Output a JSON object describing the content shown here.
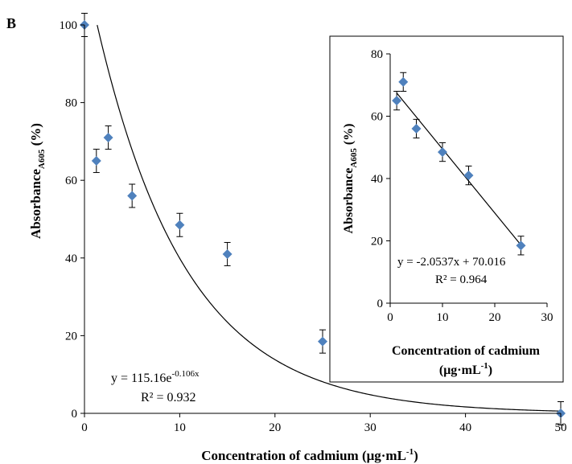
{
  "panel_label": "B",
  "chart_data": [
    {
      "type": "scatter",
      "xlabel": "Concentration of cadmium (μg·mL",
      "xlabel_sup": "-1",
      "xlabel_end": ")",
      "ylabel": "Absorbance",
      "ylabel_sub": "A605",
      "ylabel_end": " (%)",
      "xlim": [
        0,
        50
      ],
      "ylim": [
        0,
        100
      ],
      "xticks": [
        0,
        10,
        20,
        30,
        40,
        50
      ],
      "yticks": [
        0,
        20,
        40,
        60,
        80,
        100
      ],
      "marker_color": "#4f81bd",
      "points": [
        {
          "x": 0,
          "y": 100,
          "err": 3
        },
        {
          "x": 1.25,
          "y": 65,
          "err": 3
        },
        {
          "x": 2.5,
          "y": 71,
          "err": 3
        },
        {
          "x": 5,
          "y": 56,
          "err": 3
        },
        {
          "x": 10,
          "y": 48.5,
          "err": 3
        },
        {
          "x": 15,
          "y": 41,
          "err": 3
        },
        {
          "x": 25,
          "y": 18.5,
          "err": 3
        },
        {
          "x": 50,
          "y": 0,
          "err": 3
        }
      ],
      "fit": {
        "type": "exponential",
        "a": 115.16,
        "b": -0.106
      },
      "equation": "y = 115.16e",
      "equation_exp": "-0.106x",
      "r2": "R² = 0.932"
    },
    {
      "type": "scatter",
      "xlabel": "Concentration of cadmium",
      "xlabel2": "(μg·mL",
      "xlabel2_sup": "-1",
      "xlabel2_end": ")",
      "ylabel": "Absorbance",
      "ylabel_sub": "A605",
      "ylabel_end": " (%)",
      "xlim": [
        0,
        30
      ],
      "ylim": [
        0,
        80
      ],
      "xticks": [
        0,
        10,
        20,
        30
      ],
      "yticks": [
        0,
        20,
        40,
        60,
        80
      ],
      "marker_color": "#4f81bd",
      "points": [
        {
          "x": 1.25,
          "y": 65,
          "err": 3
        },
        {
          "x": 2.5,
          "y": 71,
          "err": 3
        },
        {
          "x": 5,
          "y": 56,
          "err": 3
        },
        {
          "x": 10,
          "y": 48.5,
          "err": 3
        },
        {
          "x": 15,
          "y": 41,
          "err": 3
        },
        {
          "x": 25,
          "y": 18.5,
          "err": 3
        }
      ],
      "fit": {
        "type": "linear",
        "slope": -2.0537,
        "intercept": 70.016
      },
      "equation": "y = -2.0537x + 70.016",
      "r2": "R² = 0.964"
    }
  ]
}
